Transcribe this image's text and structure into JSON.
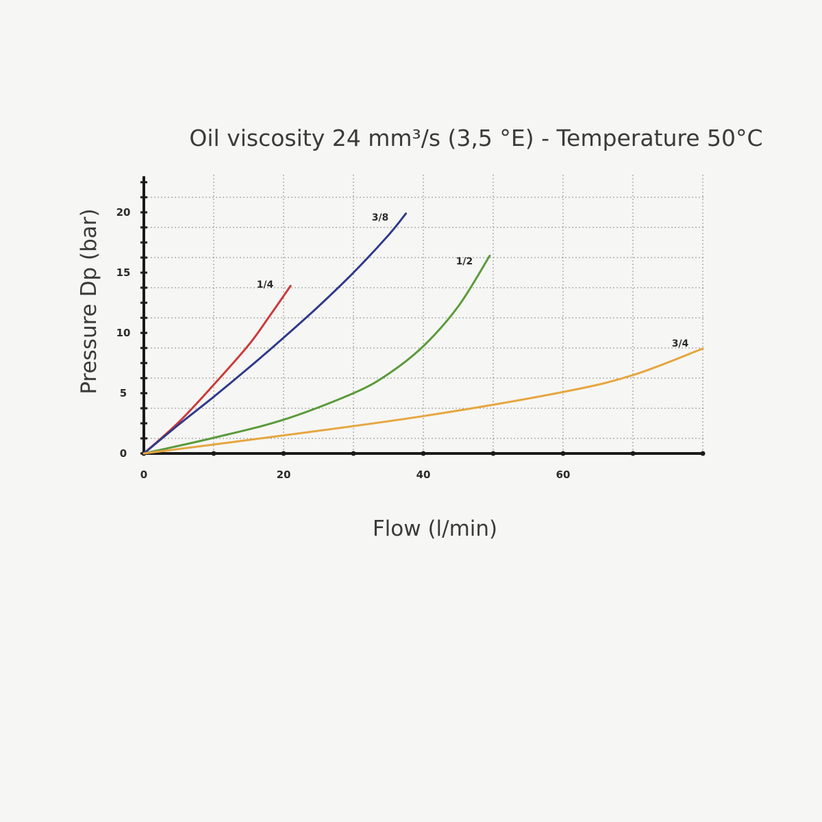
{
  "chart_data": {
    "type": "line",
    "title": "Oil viscosity 24 mm³/s (3,5 °E) - Temperature 50°C",
    "xlabel": "Flow (l/min)",
    "ylabel": "Pressure Dp (bar)",
    "xlim": [
      0,
      80
    ],
    "ylim": [
      0,
      23
    ],
    "xticks": [
      0,
      20,
      40,
      60
    ],
    "yticks": [
      0,
      5,
      10,
      15,
      20
    ],
    "grid": true,
    "series": [
      {
        "name": "1/4",
        "color": "#cc3a3a",
        "x": [
          0,
          5,
          10,
          15,
          18,
          21
        ],
        "y": [
          0,
          2.6,
          5.7,
          9.0,
          11.4,
          13.9
        ]
      },
      {
        "name": "3/8",
        "color": "#2e3a8a",
        "x": [
          0,
          5,
          10,
          15,
          20,
          25,
          30,
          35,
          37.5
        ],
        "y": [
          0,
          2.4,
          4.7,
          7.1,
          9.6,
          12.2,
          15.0,
          18.1,
          19.9
        ]
      },
      {
        "name": "1/2",
        "color": "#5a9a3a",
        "x": [
          0,
          10,
          20,
          30,
          35,
          40,
          45,
          49.5
        ],
        "y": [
          0,
          1.3,
          2.8,
          5.0,
          6.6,
          8.9,
          12.2,
          16.4
        ]
      },
      {
        "name": "3/4",
        "color": "#e6a640",
        "x": [
          0,
          20,
          40,
          60,
          70,
          80
        ],
        "y": [
          0,
          1.5,
          3.1,
          5.1,
          6.5,
          8.7
        ]
      }
    ]
  }
}
